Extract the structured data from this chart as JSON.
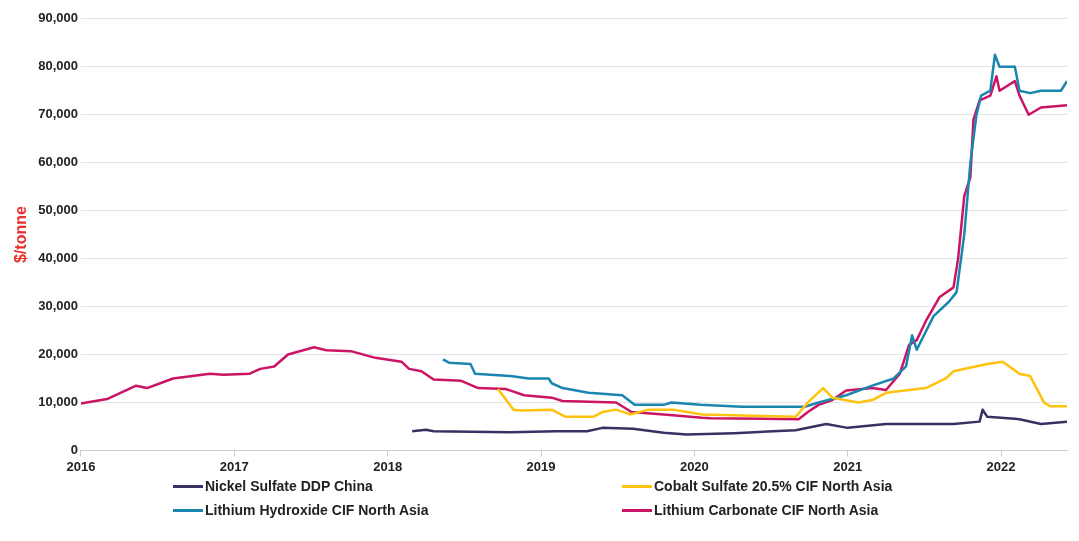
{
  "chart_data": {
    "type": "line",
    "ylabel": "$/tonne",
    "xlim": [
      2016,
      2022.43
    ],
    "xticks": [
      2016,
      2017,
      2018,
      2019,
      2020,
      2021,
      2022
    ],
    "ylim": [
      0,
      90000
    ],
    "yticks": [
      0,
      {
        "value": 10000,
        "label": "10,000"
      },
      {
        "value": 20000,
        "label": "20,000"
      },
      {
        "value": 30000,
        "label": "30,000"
      },
      {
        "value": 40000,
        "label": "40,000"
      },
      {
        "value": 50000,
        "label": "50,000"
      },
      {
        "value": 60000,
        "label": "60,000"
      },
      {
        "value": 70000,
        "label": "70,000"
      },
      {
        "value": 80000,
        "label": "80,000"
      },
      {
        "value": 90000,
        "label": "90,000"
      }
    ],
    "grid": "y",
    "legend": "bottom",
    "series": [
      {
        "name": "Nickel Sulfate DDP China",
        "color": "#3b2f63",
        "x": [
          2018.16,
          2018.25,
          2018.3,
          2018.8,
          2019.1,
          2019.3,
          2019.4,
          2019.6,
          2019.8,
          2019.95,
          2020.26,
          2020.66,
          2020.86,
          2021.0,
          2021.25,
          2021.69,
          2021.86,
          2021.88,
          2021.91,
          2022.12,
          2022.26,
          2022.43
        ],
        "values": [
          4000,
          4300,
          4000,
          3800,
          4000,
          4000,
          4700,
          4500,
          3700,
          3300,
          3600,
          4200,
          5500,
          4700,
          5500,
          5500,
          6000,
          8500,
          7000,
          6500,
          5500,
          6000
        ]
      },
      {
        "name": "Cobalt Sulfate 20.5% CIF North Asia",
        "color": "#ffc20e",
        "x": [
          2018.72,
          2018.82,
          2018.87,
          2019.07,
          2019.16,
          2019.34,
          2019.4,
          2019.49,
          2019.58,
          2019.7,
          2019.86,
          2020.05,
          2020.66,
          2020.74,
          2020.84,
          2020.9,
          2021.07,
          2021.16,
          2021.25,
          2021.51,
          2021.64,
          2021.69,
          2021.91,
          2022.01,
          2022.12,
          2022.19,
          2022.28,
          2022.32,
          2022.43
        ],
        "values": [
          12800,
          8500,
          8300,
          8500,
          7000,
          7000,
          8000,
          8500,
          7500,
          8500,
          8500,
          7500,
          7000,
          10000,
          13000,
          11000,
          10000,
          10500,
          12000,
          13000,
          15000,
          16500,
          18000,
          18500,
          16000,
          15500,
          10000,
          9200,
          9200
        ]
      },
      {
        "name": "Lithium Hydroxide CIF North Asia",
        "color": "#1a86b0",
        "x": [
          2018.36,
          2018.4,
          2018.54,
          2018.57,
          2018.8,
          2018.92,
          2019.05,
          2019.07,
          2019.14,
          2019.31,
          2019.53,
          2019.61,
          2019.8,
          2019.85,
          2020.04,
          2020.31,
          2020.72,
          2020.81,
          2020.99,
          2021.16,
          2021.3,
          2021.38,
          2021.42,
          2021.45,
          2021.56,
          2021.66,
          2021.71,
          2021.76,
          2021.8,
          2021.84,
          2021.87,
          2021.93,
          2021.96,
          2021.99,
          2022.09,
          2022.12,
          2022.19,
          2022.26,
          2022.39,
          2022.43
        ],
        "values": [
          19000,
          18300,
          18000,
          16000,
          15500,
          15000,
          15000,
          14000,
          13000,
          12000,
          11500,
          9500,
          9500,
          10000,
          9500,
          9100,
          9100,
          10000,
          11500,
          13500,
          15000,
          17500,
          24000,
          21000,
          28000,
          31000,
          33000,
          45000,
          60000,
          70000,
          74000,
          75000,
          82500,
          80000,
          80000,
          75000,
          74500,
          75000,
          75000,
          77000
        ]
      },
      {
        "name": "Lithium Carbonate CIF North Asia",
        "color": "#cc1466",
        "x": [
          2016.0,
          2016.17,
          2016.36,
          2016.43,
          2016.5,
          2016.6,
          2016.84,
          2016.93,
          2017.1,
          2017.17,
          2017.26,
          2017.35,
          2017.52,
          2017.6,
          2017.76,
          2017.92,
          2018.09,
          2018.14,
          2018.22,
          2018.3,
          2018.48,
          2018.59,
          2018.77,
          2018.89,
          2019.07,
          2019.14,
          2019.49,
          2019.59,
          2019.8,
          2020.05,
          2020.11,
          2020.68,
          2020.74,
          2020.81,
          2020.9,
          2020.99,
          2021.16,
          2021.25,
          2021.34,
          2021.4,
          2021.45,
          2021.51,
          2021.6,
          2021.69,
          2021.72,
          2021.76,
          2021.8,
          2021.82,
          2021.86,
          2021.93,
          2021.97,
          2021.99,
          2022.09,
          2022.12,
          2022.18,
          2022.26,
          2022.43
        ],
        "values": [
          9800,
          10700,
          13500,
          13000,
          13800,
          15000,
          16000,
          15800,
          16000,
          17000,
          17500,
          20000,
          21500,
          20900,
          20700,
          19300,
          18500,
          17000,
          16500,
          14800,
          14500,
          13000,
          12800,
          11500,
          11000,
          10300,
          10000,
          8000,
          7500,
          6800,
          6700,
          6500,
          8000,
          9500,
          10500,
          12500,
          13000,
          12600,
          16000,
          22000,
          23000,
          27000,
          32000,
          34000,
          40000,
          53000,
          57000,
          69000,
          73000,
          74000,
          78000,
          75000,
          77000,
          74000,
          70000,
          71500,
          72000
        ]
      }
    ]
  }
}
